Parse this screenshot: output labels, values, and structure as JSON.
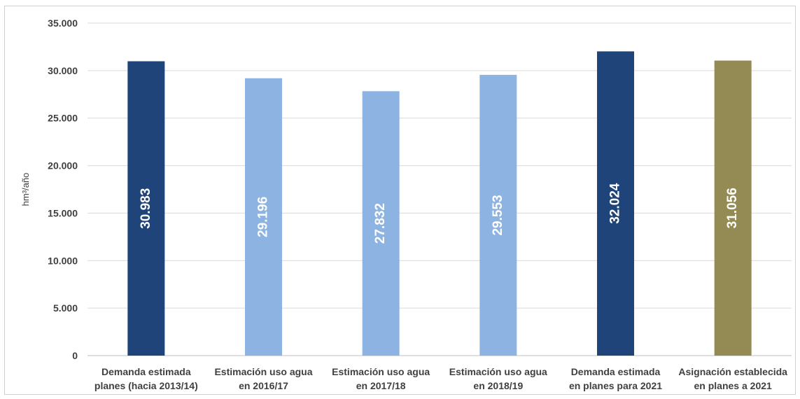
{
  "chart_data": {
    "type": "bar",
    "title": "",
    "xlabel": "",
    "ylabel": "hm³/año",
    "ylim": [
      0,
      35000
    ],
    "yticks": [
      0,
      5000,
      10000,
      15000,
      20000,
      25000,
      30000,
      35000
    ],
    "ytick_labels": [
      "0",
      "5.000",
      "10.000",
      "15.000",
      "20.000",
      "25.000",
      "30.000",
      "35.000"
    ],
    "grid": true,
    "legend": "none",
    "categories": [
      [
        "Demanda estimada",
        "planes (hacia 2013/14)"
      ],
      [
        "Estimación uso agua",
        "en 2016/17"
      ],
      [
        "Estimación uso agua",
        "en 2017/18"
      ],
      [
        "Estimación uso agua",
        "en 2018/19"
      ],
      [
        "Demanda estimada",
        "en planes para 2021"
      ],
      [
        "Asignación establecida",
        "en planes a 2021"
      ]
    ],
    "values": [
      30983,
      29196,
      27832,
      29553,
      32024,
      31056
    ],
    "data_labels": [
      "30.983",
      "29.196",
      "27.832",
      "29.553",
      "32.024",
      "31.056"
    ],
    "colors": [
      "#1f4479",
      "#8db3e2",
      "#8db3e2",
      "#8db3e2",
      "#1f4479",
      "#948a54"
    ]
  }
}
